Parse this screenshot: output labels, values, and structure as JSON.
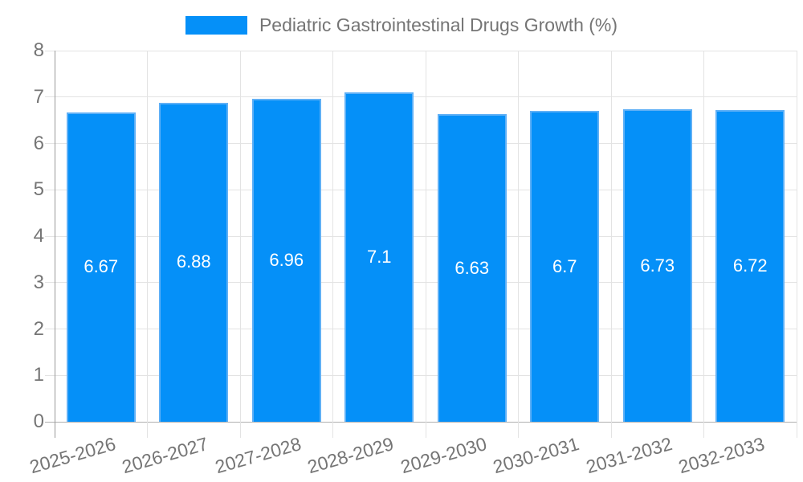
{
  "legend": {
    "label": "Pediatric Gastrointestinal Drugs Growth (%)",
    "swatch_color": "#0590f8"
  },
  "chart_data": {
    "type": "bar",
    "title": "Pediatric Gastrointestinal Drugs Growth (%)",
    "categories": [
      "2025-2026",
      "2026-2027",
      "2027-2028",
      "2028-2029",
      "2029-2030",
      "2030-2031",
      "2031-2032",
      "2032-2033"
    ],
    "values": [
      6.67,
      6.88,
      6.96,
      7.1,
      6.63,
      6.7,
      6.73,
      6.72
    ],
    "value_labels": [
      "6.67",
      "6.88",
      "6.96",
      "7.1",
      "6.63",
      "6.7",
      "6.73",
      "6.72"
    ],
    "xlabel": "",
    "ylabel": "",
    "ylim": [
      0,
      8
    ],
    "yticks": [
      0,
      1,
      2,
      3,
      4,
      5,
      6,
      7,
      8
    ],
    "grid": true,
    "legend_position": "top",
    "colors": {
      "bar_fill": "#0590f8",
      "bar_border": "#5fb0f6",
      "grid_line": "#e3e3e3",
      "baseline": "#b0b0b0",
      "axis_line": "#9a9a9a",
      "axis_text": "#757575",
      "value_text": "#ffffff"
    }
  }
}
